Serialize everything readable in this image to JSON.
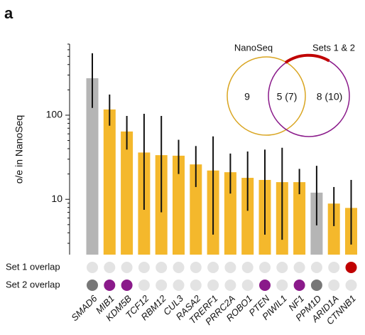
{
  "panel_label": "a",
  "chart_data": {
    "type": "bar",
    "ylabel": "o/e in NanoSeq",
    "log_scale": true,
    "ylim": [
      2.2,
      700
    ],
    "yticks": [
      10,
      100
    ],
    "yticks_minor": [
      3,
      4,
      5,
      6,
      7,
      8,
      9,
      20,
      30,
      40,
      50,
      60,
      70,
      80,
      90,
      200,
      300,
      400,
      500,
      600,
      700
    ],
    "categories": [
      "SMAD6",
      "MIB1",
      "KDM5B",
      "TCF12",
      "RBM12",
      "CUL3",
      "RASA2",
      "TRERF1",
      "PRRC2A",
      "ROBO1",
      "PTEN",
      "PIWIL1",
      "NF1",
      "PPM1D",
      "ARID1A",
      "CTNNB1"
    ],
    "values": [
      275,
      117,
      64,
      36,
      33.5,
      33,
      26,
      22,
      21,
      18,
      17,
      16,
      16,
      12,
      8.9,
      7.9
    ],
    "lower": [
      122,
      75,
      39,
      7.5,
      7,
      20,
      14,
      3.8,
      11.7,
      7.3,
      3.8,
      3.3,
      11.5,
      4.9,
      4.8,
      2.9
    ],
    "upper": [
      545,
      176,
      98,
      104,
      98,
      51,
      43,
      56,
      35,
      37,
      39,
      41,
      23,
      25,
      14,
      17
    ],
    "colors": [
      "#b5b5b5",
      "#f4b82c",
      "#f4b82c",
      "#f4b82c",
      "#f4b82c",
      "#f4b82c",
      "#f4b82c",
      "#f4b82c",
      "#f4b82c",
      "#f4b82c",
      "#f4b82c",
      "#f4b82c",
      "#f4b82c",
      "#b5b5b5",
      "#f4b82c",
      "#f4b82c"
    ],
    "overlap_rows": [
      {
        "label": "Set 1 overlap",
        "colors": [
          "#e3e3e3",
          "#e3e3e3",
          "#e3e3e3",
          "#e3e3e3",
          "#e3e3e3",
          "#e3e3e3",
          "#e3e3e3",
          "#e3e3e3",
          "#e3e3e3",
          "#e3e3e3",
          "#e3e3e3",
          "#e3e3e3",
          "#e3e3e3",
          "#e3e3e3",
          "#e3e3e3",
          "#c00000"
        ]
      },
      {
        "label": "Set 2 overlap",
        "colors": [
          "#777777",
          "#8a1a8a",
          "#8a1a8a",
          "#e3e3e3",
          "#e3e3e3",
          "#e3e3e3",
          "#e3e3e3",
          "#e3e3e3",
          "#e3e3e3",
          "#e3e3e3",
          "#8a1a8a",
          "#e3e3e3",
          "#8a1a8a",
          "#777777",
          "#e3e3e3",
          "#e3e3e3"
        ]
      }
    ]
  },
  "venn": {
    "left_label": "NanoSeq",
    "right_label": "Sets 1 & 2",
    "left_only": "9",
    "both": "5 (7)",
    "right_only": "8 (10)"
  }
}
